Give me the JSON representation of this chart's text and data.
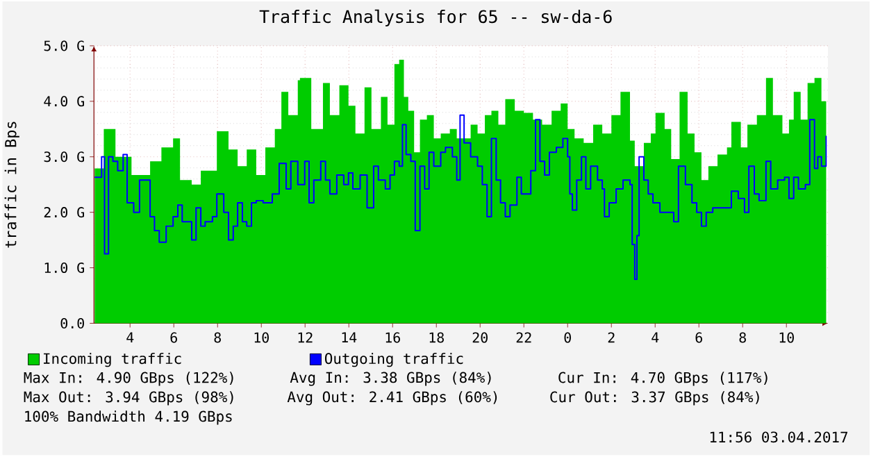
{
  "chart_data": {
    "type": "area",
    "title": "Traffic Analysis for 65 -- sw-da-6",
    "ylabel": "traffic in Bps",
    "xlim": [
      "2017-04-02T02:21",
      "2017-04-03T11:54"
    ],
    "ylim": [
      0,
      5
    ],
    "xticks": [
      {
        "value": "2017-04-02T04:00",
        "label": "4"
      },
      {
        "value": "2017-04-02T06:00",
        "label": "6"
      },
      {
        "value": "2017-04-02T08:00",
        "label": "8"
      },
      {
        "value": "2017-04-02T10:00",
        "label": "10"
      },
      {
        "value": "2017-04-02T12:00",
        "label": "12"
      },
      {
        "value": "2017-04-02T14:00",
        "label": "14"
      },
      {
        "value": "2017-04-02T16:00",
        "label": "16"
      },
      {
        "value": "2017-04-02T18:00",
        "label": "18"
      },
      {
        "value": "2017-04-02T20:00",
        "label": "20"
      },
      {
        "value": "2017-04-02T22:00",
        "label": "22"
      },
      {
        "value": "2017-04-03T00:00",
        "label": "0"
      },
      {
        "value": "2017-04-03T02:00",
        "label": "2"
      },
      {
        "value": "2017-04-03T04:00",
        "label": "4"
      },
      {
        "value": "2017-04-03T06:00",
        "label": "6"
      },
      {
        "value": "2017-04-03T08:00",
        "label": "8"
      },
      {
        "value": "2017-04-03T10:00",
        "label": "10"
      }
    ],
    "yticks": [
      {
        "value": 0,
        "label": "0.0"
      },
      {
        "value": 1,
        "label": "1.0 G"
      },
      {
        "value": 2,
        "label": "2.0 G"
      },
      {
        "value": 3,
        "label": "3.0 G"
      },
      {
        "value": 4,
        "label": "4.0 G"
      },
      {
        "value": 5,
        "label": "5.0 G"
      }
    ],
    "grid": true,
    "legend": "bottom left",
    "series": [
      {
        "name": "Incoming traffic",
        "color": "#00cc00",
        "x": [
          "2017-04-02T02:23",
          "2017-04-02T02:48",
          "2017-04-02T03:20",
          "2017-04-02T04:04",
          "2017-04-02T04:55",
          "2017-04-02T05:26",
          "2017-04-02T05:58",
          "2017-04-02T06:17",
          "2017-04-02T06:49",
          "2017-04-02T07:14",
          "2017-04-02T07:58",
          "2017-04-02T08:30",
          "2017-04-02T08:55",
          "2017-04-02T09:20",
          "2017-04-02T09:46",
          "2017-04-02T10:11",
          "2017-04-02T10:37",
          "2017-04-02T10:55",
          "2017-04-02T11:14",
          "2017-04-02T11:40",
          "2017-04-02T11:46",
          "2017-04-02T12:17",
          "2017-04-02T12:49",
          "2017-04-02T13:08",
          "2017-04-02T13:34",
          "2017-04-02T13:59",
          "2017-04-02T14:18",
          "2017-04-02T14:43",
          "2017-04-02T15:02",
          "2017-04-02T15:28",
          "2017-04-02T15:46",
          "2017-04-02T16:05",
          "2017-04-02T16:18",
          "2017-04-02T16:31",
          "2017-04-02T16:43",
          "2017-04-02T16:59",
          "2017-04-02T17:15",
          "2017-04-02T17:34",
          "2017-04-02T17:53",
          "2017-04-02T18:12",
          "2017-04-02T18:37",
          "2017-04-02T18:56",
          "2017-04-02T19:16",
          "2017-04-02T19:34",
          "2017-04-02T19:53",
          "2017-04-02T20:13",
          "2017-04-02T20:31",
          "2017-04-02T20:50",
          "2017-04-02T21:09",
          "2017-04-02T21:35",
          "2017-04-02T22:00",
          "2017-04-02T22:25",
          "2017-04-02T22:50",
          "2017-04-02T23:16",
          "2017-04-02T23:41",
          "2017-04-03T00:00",
          "2017-04-03T00:19",
          "2017-04-03T00:44",
          "2017-04-03T01:10",
          "2017-04-03T01:35",
          "2017-04-03T02:00",
          "2017-04-03T02:25",
          "2017-04-03T02:51",
          "2017-04-03T03:04",
          "2017-04-03T03:29",
          "2017-04-03T03:48",
          "2017-04-03T04:01",
          "2017-04-03T04:26",
          "2017-04-03T04:44",
          "2017-04-03T05:07",
          "2017-04-03T05:29",
          "2017-04-03T05:48",
          "2017-04-03T06:07",
          "2017-04-03T06:26",
          "2017-04-03T06:51",
          "2017-04-03T07:17",
          "2017-04-03T07:29",
          "2017-04-03T07:55",
          "2017-04-03T08:13",
          "2017-04-03T08:39",
          "2017-04-03T09:04",
          "2017-04-03T09:23",
          "2017-04-03T09:49",
          "2017-04-03T10:07",
          "2017-04-03T10:20",
          "2017-04-03T10:39",
          "2017-04-03T10:58",
          "2017-04-03T11:17",
          "2017-04-03T11:36",
          "2017-04-03T11:49"
        ],
        "values": [
          2.79,
          3.5,
          3.0,
          2.67,
          2.92,
          3.17,
          3.33,
          2.58,
          2.5,
          2.75,
          3.46,
          3.13,
          2.83,
          3.13,
          2.67,
          3.17,
          3.5,
          4.17,
          3.75,
          4.38,
          4.42,
          3.5,
          4.33,
          3.75,
          4.29,
          3.92,
          3.42,
          4.25,
          3.5,
          4.08,
          3.58,
          4.67,
          4.75,
          4.08,
          3.83,
          3.08,
          3.67,
          3.75,
          3.33,
          3.42,
          3.5,
          3.33,
          3.33,
          3.58,
          3.42,
          3.75,
          3.83,
          3.58,
          4.04,
          3.83,
          3.79,
          3.67,
          3.58,
          3.83,
          3.96,
          3.5,
          3.33,
          3.25,
          3.58,
          3.42,
          3.75,
          4.17,
          3.29,
          2.83,
          3.25,
          3.42,
          3.79,
          3.5,
          2.96,
          4.17,
          3.42,
          3.08,
          2.58,
          2.83,
          3.04,
          3.17,
          3.63,
          3.17,
          3.58,
          3.75,
          4.42,
          3.75,
          3.42,
          3.67,
          4.17,
          3.67,
          4.33,
          4.42,
          4.0,
          4.71
        ]
      },
      {
        "name": "Outgoing traffic",
        "type": "step",
        "color": "#0000ff",
        "x": [
          "2017-04-02T02:23",
          "2017-04-02T02:42",
          "2017-04-02T02:50",
          "2017-04-02T03:01",
          "2017-04-02T03:13",
          "2017-04-02T03:26",
          "2017-04-02T03:41",
          "2017-04-02T03:52",
          "2017-04-02T04:10",
          "2017-04-02T04:26",
          "2017-04-02T04:42",
          "2017-04-02T04:55",
          "2017-04-02T05:07",
          "2017-04-02T05:20",
          "2017-04-02T05:39",
          "2017-04-02T05:58",
          "2017-04-02T06:11",
          "2017-04-02T06:23",
          "2017-04-02T06:49",
          "2017-04-02T07:01",
          "2017-04-02T07:14",
          "2017-04-02T07:26",
          "2017-04-02T07:46",
          "2017-04-02T07:58",
          "2017-04-02T08:17",
          "2017-04-02T08:30",
          "2017-04-02T08:43",
          "2017-04-02T08:55",
          "2017-04-02T09:08",
          "2017-04-02T09:20",
          "2017-04-02T09:33",
          "2017-04-02T09:46",
          "2017-04-02T10:05",
          "2017-04-02T10:17",
          "2017-04-02T10:30",
          "2017-04-02T10:49",
          "2017-04-02T11:08",
          "2017-04-02T11:21",
          "2017-04-02T11:40",
          "2017-04-02T11:59",
          "2017-04-02T12:11",
          "2017-04-02T12:24",
          "2017-04-02T12:43",
          "2017-04-02T12:56",
          "2017-04-02T13:08",
          "2017-04-02T13:27",
          "2017-04-02T13:46",
          "2017-04-02T13:59",
          "2017-04-02T14:11",
          "2017-04-02T14:31",
          "2017-04-02T14:50",
          "2017-04-02T15:08",
          "2017-04-02T15:21",
          "2017-04-02T15:40",
          "2017-04-02T15:53",
          "2017-04-02T16:05",
          "2017-04-02T16:18",
          "2017-04-02T16:27",
          "2017-04-02T16:37",
          "2017-04-02T16:50",
          "2017-04-02T17:02",
          "2017-04-02T17:15",
          "2017-04-02T17:28",
          "2017-04-02T17:40",
          "2017-04-02T17:53",
          "2017-04-02T18:12",
          "2017-04-02T18:25",
          "2017-04-02T18:44",
          "2017-04-02T18:56",
          "2017-04-02T19:05",
          "2017-04-02T19:16",
          "2017-04-02T19:34",
          "2017-04-02T19:53",
          "2017-04-02T20:06",
          "2017-04-02T20:19",
          "2017-04-02T20:31",
          "2017-04-02T20:44",
          "2017-04-02T20:56",
          "2017-04-02T21:09",
          "2017-04-02T21:22",
          "2017-04-02T21:41",
          "2017-04-02T21:53",
          "2017-04-02T22:06",
          "2017-04-02T22:19",
          "2017-04-02T22:32",
          "2017-04-02T22:44",
          "2017-04-02T22:57",
          "2017-04-02T23:10",
          "2017-04-02T23:29",
          "2017-04-02T23:47",
          "2017-04-03T00:00",
          "2017-04-03T00:06",
          "2017-04-03T00:13",
          "2017-04-03T00:25",
          "2017-04-03T00:38",
          "2017-04-03T00:50",
          "2017-04-03T01:03",
          "2017-04-03T01:22",
          "2017-04-03T01:35",
          "2017-04-03T01:41",
          "2017-04-03T01:54",
          "2017-04-03T02:13",
          "2017-04-03T02:32",
          "2017-04-03T02:51",
          "2017-04-03T02:57",
          "2017-04-03T03:04",
          "2017-04-03T03:10",
          "2017-04-03T03:16",
          "2017-04-03T03:29",
          "2017-04-03T03:41",
          "2017-04-03T03:54",
          "2017-04-03T04:13",
          "2017-04-03T04:32",
          "2017-04-03T04:51",
          "2017-04-03T05:04",
          "2017-04-03T05:23",
          "2017-04-03T05:41",
          "2017-04-03T05:54",
          "2017-04-03T06:07",
          "2017-04-03T06:20",
          "2017-04-03T06:38",
          "2017-04-03T06:58",
          "2017-04-03T07:17",
          "2017-04-03T07:29",
          "2017-04-03T07:48",
          "2017-04-03T08:05",
          "2017-04-03T08:17",
          "2017-04-03T08:32",
          "2017-04-03T08:45",
          "2017-04-03T09:04",
          "2017-04-03T09:17",
          "2017-04-03T09:36",
          "2017-04-03T09:55",
          "2017-04-03T10:07",
          "2017-04-03T10:20",
          "2017-04-03T10:33",
          "2017-04-03T10:52",
          "2017-04-03T11:04",
          "2017-04-03T11:17",
          "2017-04-03T11:26",
          "2017-04-03T11:36",
          "2017-04-03T11:49"
        ],
        "values": [
          2.63,
          3.0,
          1.25,
          3.0,
          2.92,
          2.75,
          3.04,
          2.17,
          2.0,
          2.58,
          2.58,
          1.92,
          1.67,
          1.46,
          1.75,
          1.92,
          2.13,
          1.83,
          1.5,
          2.08,
          1.75,
          1.83,
          1.92,
          2.33,
          2.0,
          1.5,
          1.75,
          2.17,
          1.83,
          1.75,
          2.17,
          2.21,
          2.17,
          2.17,
          2.33,
          2.88,
          2.42,
          2.92,
          2.5,
          2.92,
          2.17,
          2.58,
          2.92,
          2.58,
          2.33,
          2.67,
          2.5,
          2.71,
          2.42,
          2.67,
          2.08,
          2.83,
          2.58,
          2.42,
          2.67,
          2.92,
          2.83,
          3.58,
          3.04,
          2.92,
          1.67,
          2.83,
          2.42,
          3.08,
          2.83,
          3.08,
          3.17,
          3.0,
          2.58,
          3.75,
          3.25,
          3.0,
          2.83,
          2.5,
          1.92,
          3.33,
          2.58,
          2.17,
          1.92,
          2.13,
          2.63,
          2.33,
          2.33,
          2.75,
          3.67,
          2.92,
          2.67,
          3.08,
          3.17,
          3.33,
          3.0,
          2.33,
          2.04,
          2.58,
          3.0,
          2.42,
          2.83,
          2.58,
          2.42,
          1.92,
          2.17,
          2.42,
          2.58,
          2.5,
          1.42,
          0.79,
          1.58,
          3.0,
          2.58,
          2.33,
          2.17,
          2.0,
          2.0,
          1.83,
          2.83,
          2.5,
          2.17,
          2.0,
          1.75,
          2.0,
          2.08,
          2.08,
          2.08,
          2.38,
          2.25,
          2.0,
          2.83,
          2.33,
          2.21,
          2.92,
          2.42,
          2.58,
          2.63,
          2.25,
          2.63,
          2.42,
          2.5,
          3.67,
          2.79,
          3.0,
          2.83,
          3.38
        ]
      }
    ],
    "annotations": [
      "Max In: 4.90 GBps (122%)",
      "Avg In: 3.38 GBps (84%)",
      "Cur In: 4.70 GBps (117%)",
      "Max Out: 3.94 GBps (98%)",
      "Avg Out: 2.41 GBps (60%)",
      "Cur Out: 3.37 GBps (84%)",
      "100% Bandwidth 4.19 GBps",
      "11:56 03.04.2017"
    ]
  }
}
